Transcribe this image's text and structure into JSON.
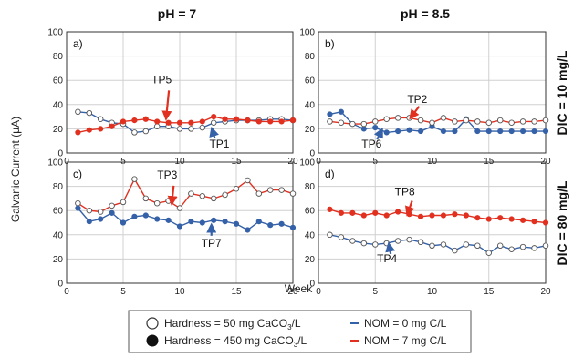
{
  "figure": {
    "column_titles": [
      "pH = 7",
      "pH = 8.5"
    ],
    "row_titles": [
      "DIC = 10 mg/L",
      "DIC = 80 mg/L"
    ],
    "ylabel": "Galvanic Current (μA)",
    "xlabel": "Week",
    "legend": {
      "hardness_low": "Hardness = 50 mg CaCO",
      "hardness_high": "Hardness = 450 mg CaCO",
      "hardness_unit_tail": "/L",
      "hardness_sub": "3",
      "nom_0": "NOM = 0 mg C/L",
      "nom_7": "NOM = 7 mg C/L"
    },
    "colors": {
      "blue": "#3561a8",
      "red": "#e1301f",
      "white_marker": "#ffffff",
      "grid": "#d0d0d0"
    }
  },
  "chart_data": [
    {
      "type": "line",
      "panel": "a)",
      "xlim": [
        0,
        20
      ],
      "ylim": [
        0,
        100
      ],
      "xticks": [
        0,
        5,
        10,
        15,
        20
      ],
      "yticks": [
        0,
        20,
        40,
        60,
        80,
        100
      ],
      "grid": true,
      "series": [
        {
          "name": "Hardness = 50 mg CaCO3/L, NOM = 0 mg C/L",
          "color": "#3561a8",
          "marker": "open",
          "x": [
            1,
            2,
            3,
            4,
            5,
            6,
            7,
            8,
            9,
            10,
            11,
            12,
            13,
            14,
            15,
            16,
            17,
            18,
            19,
            20
          ],
          "y": [
            34,
            33,
            28,
            25,
            24,
            17,
            18,
            22,
            22,
            20,
            20,
            21,
            25,
            26,
            27,
            27,
            27,
            28,
            28,
            27
          ]
        },
        {
          "name": "Hardness = 450 mg CaCO3/L, NOM = 7 mg C/L",
          "color": "#e1301f",
          "marker": "filled",
          "x": [
            1,
            2,
            3,
            4,
            5,
            6,
            7,
            8,
            9,
            10,
            11,
            12,
            13,
            14,
            15,
            16,
            17,
            18,
            19,
            20
          ],
          "y": [
            17,
            19,
            20,
            22,
            26,
            27,
            28,
            26,
            25,
            25,
            25,
            26,
            30,
            28,
            28,
            27,
            26,
            26,
            26,
            27
          ]
        }
      ],
      "annotations": [
        {
          "text": "TP5",
          "color": "#e1301f",
          "x": 8.8,
          "y": 26
        },
        {
          "text": "TP1",
          "color": "#3561a8",
          "x": 12.7,
          "y": 21
        }
      ]
    },
    {
      "type": "line",
      "panel": "b)",
      "xlim": [
        0,
        20
      ],
      "ylim": [
        0,
        100
      ],
      "xticks": [
        0,
        5,
        10,
        15,
        20
      ],
      "yticks": [
        0,
        20,
        40,
        60,
        80,
        100
      ],
      "grid": true,
      "series": [
        {
          "name": "Hardness = 450 mg CaCO3/L, NOM = 0 mg C/L",
          "color": "#3561a8",
          "marker": "filled",
          "x": [
            1,
            2,
            3,
            4,
            5,
            6,
            7,
            8,
            9,
            10,
            11,
            12,
            13,
            14,
            15,
            16,
            17,
            18,
            19,
            20
          ],
          "y": [
            32,
            34,
            24,
            20,
            21,
            17,
            18,
            19,
            18,
            22,
            18,
            18,
            28,
            18,
            18,
            18,
            18,
            18,
            18,
            18
          ]
        },
        {
          "name": "Hardness = 50 mg CaCO3/L, NOM = 7 mg C/L",
          "color": "#e1301f",
          "marker": "open",
          "x": [
            1,
            2,
            3,
            4,
            5,
            6,
            7,
            8,
            9,
            10,
            11,
            12,
            13,
            14,
            15,
            16,
            17,
            18,
            19,
            20
          ],
          "y": [
            26,
            25,
            24,
            24,
            26,
            28,
            29,
            29,
            27,
            25,
            29,
            26,
            27,
            26,
            25,
            27,
            25,
            26,
            26,
            27
          ]
        }
      ],
      "annotations": [
        {
          "text": "TP2",
          "color": "#e1301f",
          "x": 7.9,
          "y": 28
        },
        {
          "text": "TP6",
          "color": "#3561a8",
          "x": 5.0,
          "y": 21
        }
      ]
    },
    {
      "type": "line",
      "panel": "c)",
      "xlim": [
        0,
        20
      ],
      "ylim": [
        0,
        100
      ],
      "xticks": [
        0,
        5,
        10,
        15,
        20
      ],
      "yticks": [
        0,
        20,
        40,
        60,
        80,
        100
      ],
      "grid": true,
      "series": [
        {
          "name": "Hardness = 50 mg CaCO3/L, NOM = 7 mg C/L",
          "color": "#e1301f",
          "marker": "open",
          "x": [
            1,
            2,
            3,
            4,
            5,
            6,
            7,
            8,
            9,
            10,
            11,
            12,
            13,
            14,
            15,
            16,
            17,
            18,
            19,
            20
          ],
          "y": [
            66,
            60,
            59,
            64,
            67,
            86,
            70,
            66,
            68,
            62,
            74,
            72,
            70,
            73,
            78,
            85,
            74,
            77,
            77,
            74
          ]
        },
        {
          "name": "Hardness = 450 mg CaCO3/L, NOM = 0 mg C/L",
          "color": "#3561a8",
          "marker": "filled",
          "x": [
            1,
            2,
            3,
            4,
            5,
            6,
            7,
            8,
            9,
            10,
            11,
            12,
            13,
            14,
            15,
            16,
            17,
            18,
            19,
            20
          ],
          "y": [
            62,
            51,
            53,
            58,
            50,
            55,
            56,
            53,
            52,
            47,
            51,
            50,
            52,
            51,
            49,
            44,
            51,
            48,
            49,
            46
          ]
        }
      ],
      "annotations": [
        {
          "text": "TP3",
          "color": "#e1301f",
          "x": 9.3,
          "y": 64
        },
        {
          "text": "TP7",
          "color": "#3561a8",
          "x": 12.8,
          "y": 49
        }
      ]
    },
    {
      "type": "line",
      "panel": "d)",
      "xlim": [
        0,
        20
      ],
      "ylim": [
        0,
        100
      ],
      "xticks": [
        0,
        5,
        10,
        15,
        20
      ],
      "yticks": [
        0,
        20,
        40,
        60,
        80,
        100
      ],
      "grid": true,
      "series": [
        {
          "name": "Hardness = 450 mg CaCO3/L, NOM = 7 mg C/L",
          "color": "#e1301f",
          "marker": "filled",
          "x": [
            1,
            2,
            3,
            4,
            5,
            6,
            7,
            8,
            9,
            10,
            11,
            12,
            13,
            14,
            15,
            16,
            17,
            18,
            19,
            20
          ],
          "y": [
            61,
            58,
            58,
            56,
            58,
            56,
            59,
            57,
            55,
            56,
            56,
            57,
            56,
            54,
            53,
            54,
            53,
            52,
            51,
            50
          ]
        },
        {
          "name": "Hardness = 50 mg CaCO3/L, NOM = 0 mg C/L",
          "color": "#3561a8",
          "marker": "open",
          "x": [
            1,
            2,
            3,
            4,
            5,
            6,
            7,
            8,
            9,
            10,
            11,
            12,
            13,
            14,
            15,
            16,
            17,
            18,
            19,
            20
          ],
          "y": [
            40,
            38,
            35,
            33,
            32,
            33,
            35,
            36,
            34,
            31,
            32,
            27,
            32,
            31,
            25,
            31,
            28,
            30,
            29,
            31
          ]
        }
      ],
      "annotations": [
        {
          "text": "TP8",
          "color": "#e1301f",
          "x": 7.6,
          "y": 56
        },
        {
          "text": "TP4",
          "color": "#3561a8",
          "x": 6.2,
          "y": 34
        }
      ]
    }
  ]
}
